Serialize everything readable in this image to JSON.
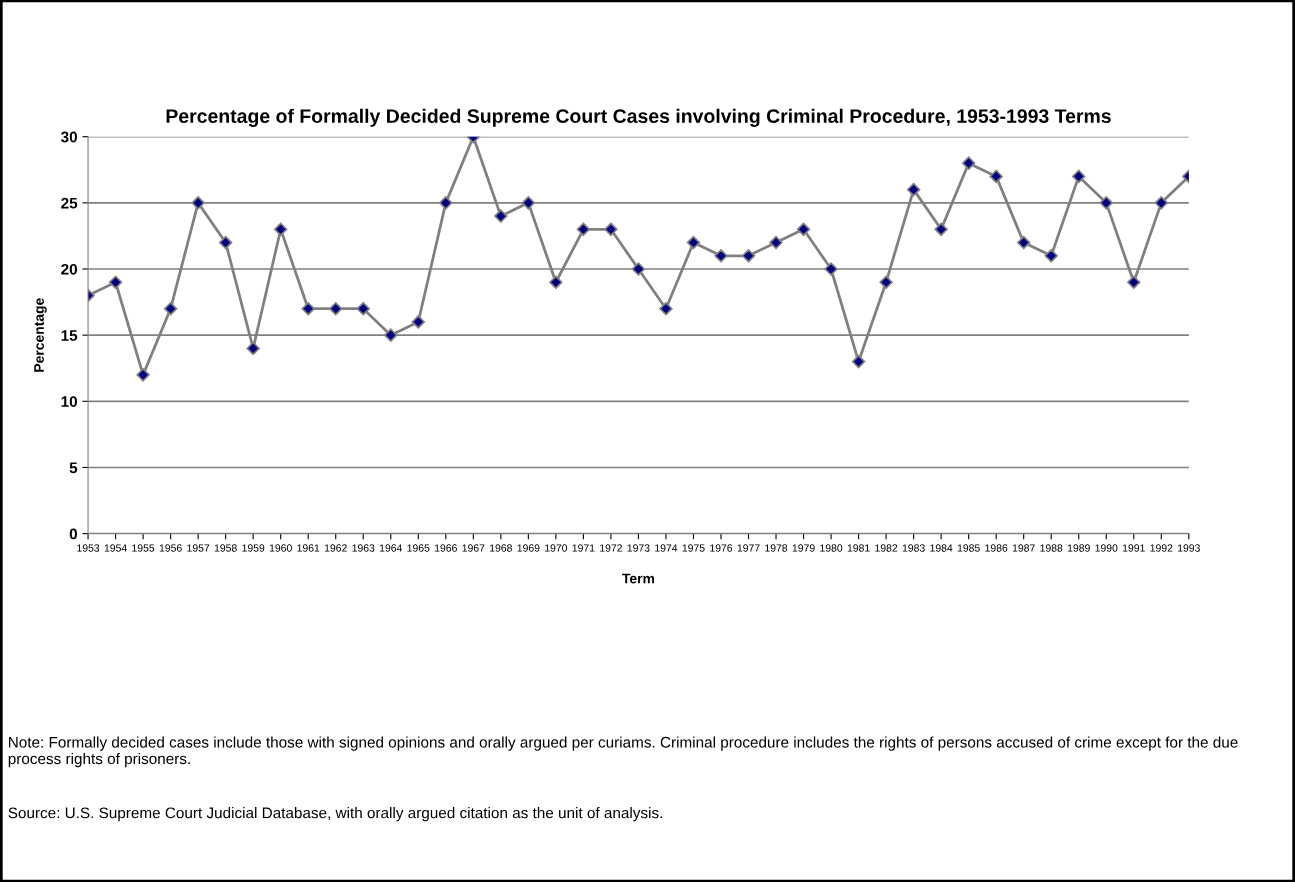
{
  "chart_data": {
    "type": "line",
    "title": "Percentage of Formally Decided Supreme Court Cases involving Criminal Procedure, 1953-1993 Terms",
    "xlabel": "Term",
    "ylabel": "Percentage",
    "categories": [
      "1953",
      "1954",
      "1955",
      "1956",
      "1957",
      "1958",
      "1959",
      "1960",
      "1961",
      "1962",
      "1963",
      "1964",
      "1965",
      "1966",
      "1967",
      "1968",
      "1969",
      "1970",
      "1971",
      "1972",
      "1973",
      "1974",
      "1975",
      "1976",
      "1977",
      "1978",
      "1979",
      "1980",
      "1981",
      "1982",
      "1983",
      "1984",
      "1985",
      "1986",
      "1987",
      "1988",
      "1989",
      "1990",
      "1991",
      "1992",
      "1993"
    ],
    "series": [
      {
        "color": "#808080",
        "values": [
          18,
          19,
          12,
          17,
          25,
          22,
          14,
          23,
          17,
          17,
          17,
          15,
          16,
          25,
          30,
          24,
          25,
          19,
          23,
          23,
          20,
          17,
          22,
          21,
          21,
          22,
          23,
          20,
          13,
          19,
          26,
          23,
          28,
          27,
          22,
          21,
          27,
          25,
          19,
          25,
          27
        ]
      }
    ],
    "ylim": [
      0,
      30
    ],
    "yticks": [
      0,
      5,
      10,
      15,
      20,
      25,
      30
    ],
    "grid": "y",
    "marker": "diamond",
    "line_style": "solid",
    "legend": false,
    "annotations": [
      "Note: Formally decided cases include those with signed opinions and orally argued per curiams. Criminal procedure includes the rights of persons accused of crime except for the due process rights of prisoners.",
      "Source: U.S. Supreme Court Judicial Database, with orally argued citation as the unit of analysis."
    ]
  }
}
